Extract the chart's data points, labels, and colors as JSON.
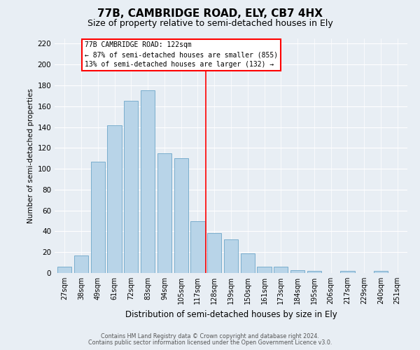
{
  "title": "77B, CAMBRIDGE ROAD, ELY, CB7 4HX",
  "subtitle": "Size of property relative to semi-detached houses in Ely",
  "xlabel": "Distribution of semi-detached houses by size in Ely",
  "ylabel": "Number of semi-detached properties",
  "bar_labels": [
    "27sqm",
    "38sqm",
    "49sqm",
    "61sqm",
    "72sqm",
    "83sqm",
    "94sqm",
    "105sqm",
    "117sqm",
    "128sqm",
    "139sqm",
    "150sqm",
    "161sqm",
    "173sqm",
    "184sqm",
    "195sqm",
    "206sqm",
    "217sqm",
    "229sqm",
    "240sqm",
    "251sqm"
  ],
  "bar_heights": [
    6,
    17,
    107,
    142,
    165,
    175,
    115,
    110,
    50,
    38,
    32,
    19,
    6,
    6,
    3,
    2,
    0,
    2,
    0,
    2,
    0
  ],
  "bar_color": "#b8d4e8",
  "bar_edgecolor": "#7aaece",
  "red_line_x": 8.5,
  "annotation_title": "77B CAMBRIDGE ROAD: 122sqm",
  "annotation_line1": "← 87% of semi-detached houses are smaller (855)",
  "annotation_line2": "13% of semi-detached houses are larger (132) →",
  "ylim": [
    0,
    225
  ],
  "yticks": [
    0,
    20,
    40,
    60,
    80,
    100,
    120,
    140,
    160,
    180,
    200,
    220
  ],
  "footer1": "Contains HM Land Registry data © Crown copyright and database right 2024.",
  "footer2": "Contains public sector information licensed under the Open Government Licence v3.0.",
  "background_color": "#e8eef4",
  "title_fontsize": 11,
  "subtitle_fontsize": 9
}
